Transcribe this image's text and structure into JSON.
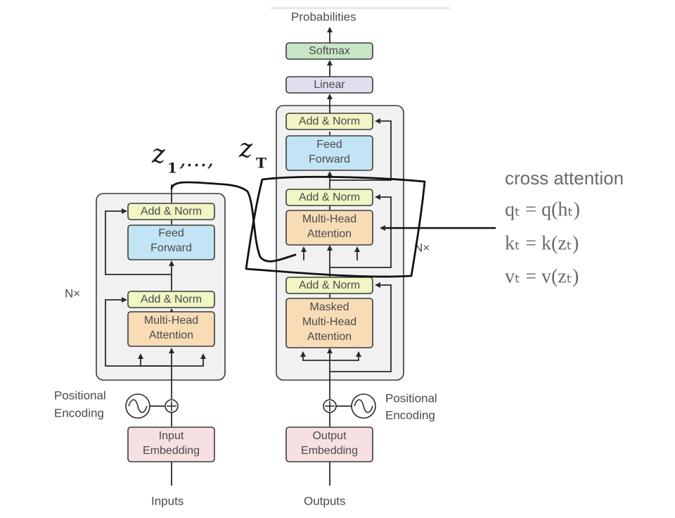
{
  "decoder": {
    "probabilities": "Probabilities",
    "softmax": "Softmax",
    "linear": "Linear",
    "add_norm_3": "Add & Norm",
    "feed_forward_line1": "Feed",
    "feed_forward_line2": "Forward",
    "add_norm_2": "Add & Norm",
    "mha_line1": "Multi-Head",
    "mha_line2": "Attention",
    "add_norm_1": "Add & Norm",
    "masked_line1": "Masked",
    "masked_line2": "Multi-Head",
    "masked_line3": "Attention",
    "nx": "N×",
    "positional_line1": "Positional",
    "positional_line2": "Encoding",
    "embedding_line1": "Output",
    "embedding_line2": "Embedding",
    "input_label": "Outputs"
  },
  "encoder": {
    "add_norm_2": "Add & Norm",
    "feed_forward_line1": "Feed",
    "feed_forward_line2": "Forward",
    "add_norm_1": "Add & Norm",
    "mha_line1": "Multi-Head",
    "mha_line2": "Attention",
    "nx": "N×",
    "positional_line1": "Positional",
    "positional_line2": "Encoding",
    "embedding_line1": "Input",
    "embedding_line2": "Embedding",
    "input_label": "Inputs"
  },
  "annotation": {
    "handwritten": "z₁, ..., z_T",
    "hw_z1": "z",
    "hw_sub1": "1",
    "hw_dots": ",…,",
    "hw_zT": "z",
    "hw_subT": "T",
    "title": "cross attention",
    "eq_q": "qₜ = q(hₜ)",
    "eq_k": "kₜ = k(zₜ)",
    "eq_v": "vₜ = v(zₜ)"
  },
  "colors": {
    "add_norm": "#f2f5c4",
    "feed_forward": "#c3e4f4",
    "attention": "#f8dcb6",
    "embedding": "#f6e0e2",
    "softmax": "#c9e6c6",
    "linear": "#dfdff0",
    "stack_bg": "#f1f1f1"
  }
}
